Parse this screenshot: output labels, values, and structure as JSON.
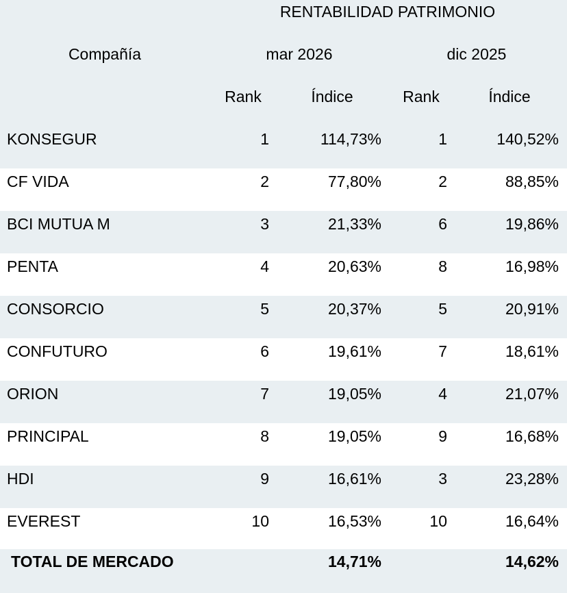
{
  "title": "RENTABILIDAD PATRIMONIO",
  "header": {
    "company": "Compañía",
    "periods": [
      "mar 2026",
      "dic 2025"
    ],
    "subheaders": [
      "Rank",
      "Índice",
      "Rank",
      "Índice"
    ]
  },
  "table": {
    "rows": [
      [
        "KONSEGUR",
        "1",
        "114,73%",
        "1",
        "140,52%"
      ],
      [
        "CF VIDA",
        "2",
        "77,80%",
        "2",
        "88,85%"
      ],
      [
        "BCI MUTUA M",
        "3",
        "21,33%",
        "6",
        "19,86%"
      ],
      [
        "PENTA",
        "4",
        "20,63%",
        "8",
        "16,98%"
      ],
      [
        "CONSORCIO",
        "5",
        "20,37%",
        "5",
        "20,91%"
      ],
      [
        "CONFUTURO",
        "6",
        "19,61%",
        "7",
        "18,61%"
      ],
      [
        "ORION",
        "7",
        "19,05%",
        "4",
        "21,07%"
      ],
      [
        "PRINCIPAL",
        "8",
        "19,05%",
        "9",
        "16,68%"
      ],
      [
        "HDI",
        "9",
        "16,61%",
        "3",
        "23,28%"
      ],
      [
        "EVEREST",
        "10",
        "16,53%",
        "10",
        "16,64%"
      ]
    ]
  },
  "total": {
    "label": "TOTAL DE MERCADO",
    "values": [
      "14,71%",
      "14,62%"
    ]
  }
}
